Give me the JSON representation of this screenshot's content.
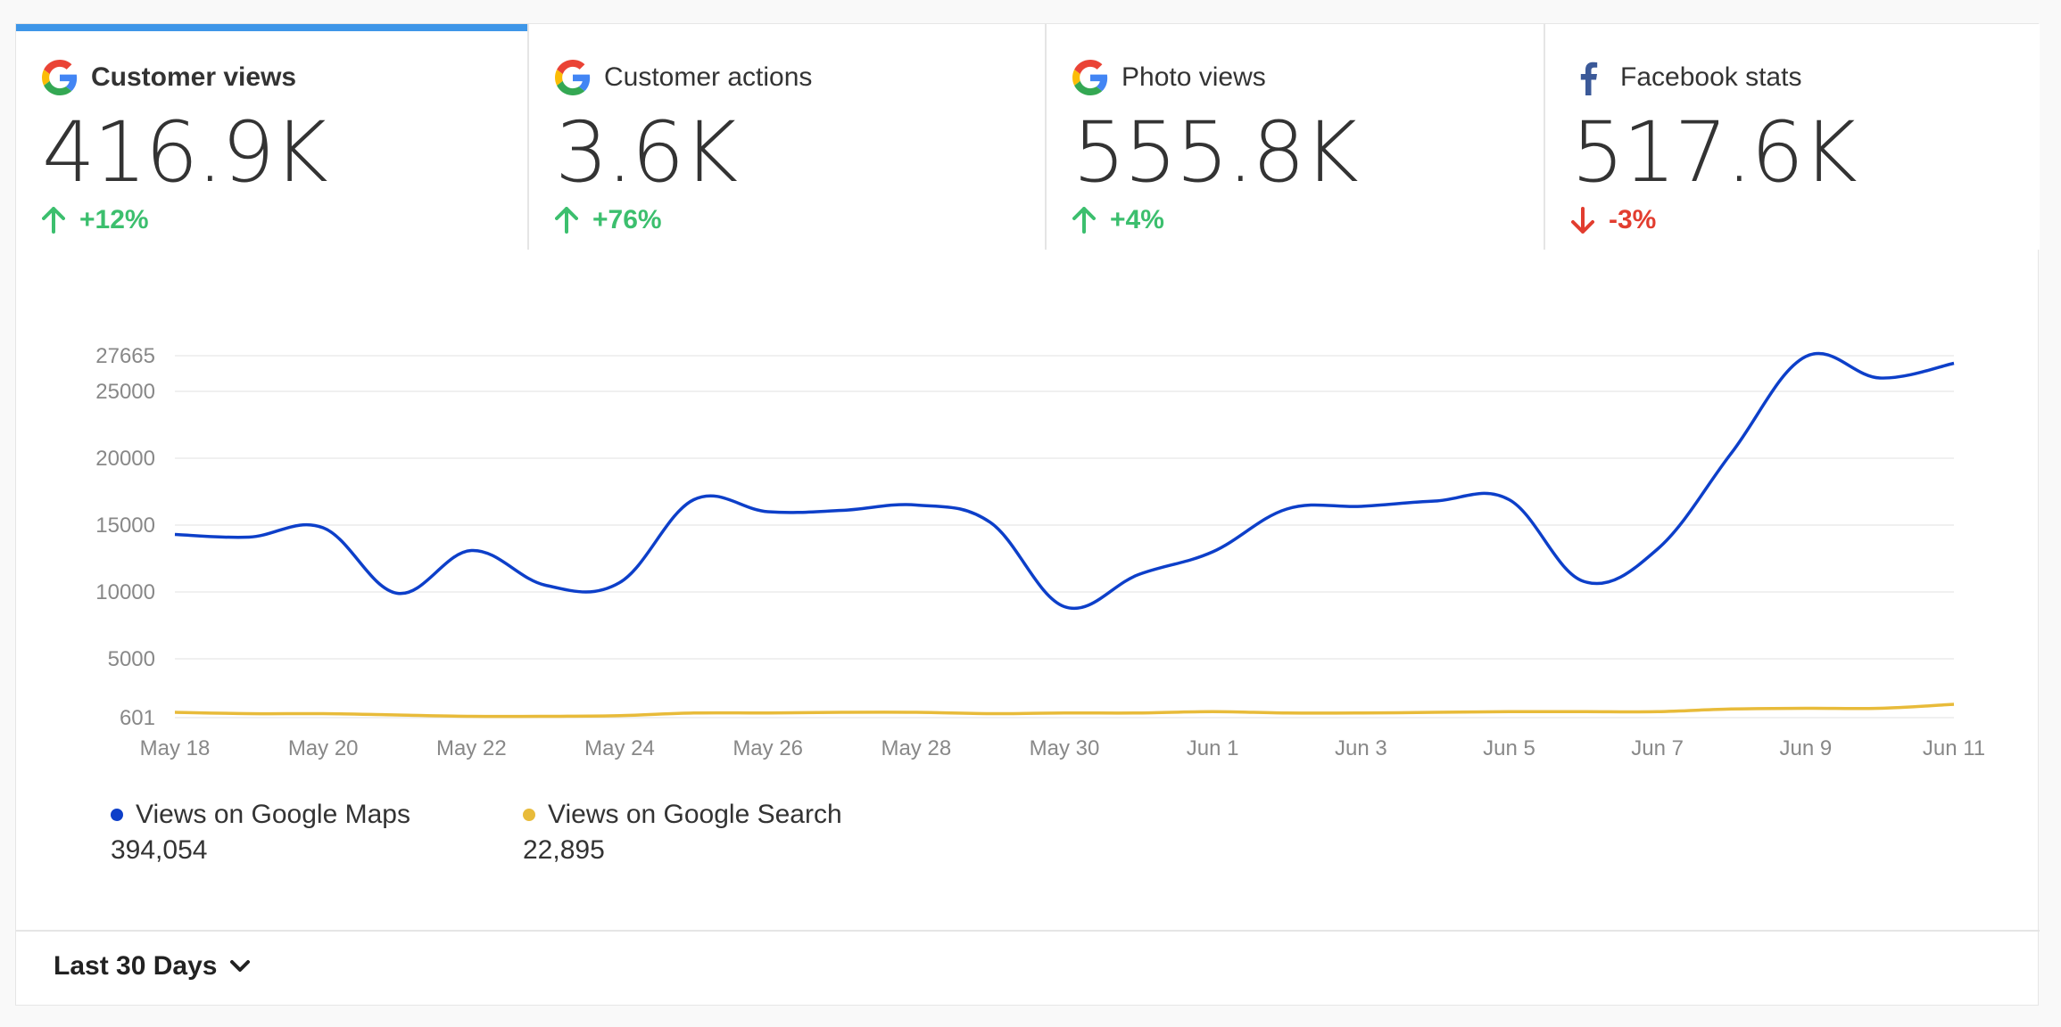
{
  "tabs": [
    {
      "title": "Customer views",
      "value": "416.9K",
      "change": "+12%",
      "direction": "up",
      "icon": "google-icon"
    },
    {
      "title": "Customer actions",
      "value": "3.6K",
      "change": "+76%",
      "direction": "up",
      "icon": "google-icon"
    },
    {
      "title": "Photo views",
      "value": "555.8K",
      "change": "+4%",
      "direction": "up",
      "icon": "google-icon"
    },
    {
      "title": "Facebook stats",
      "value": "517.6K",
      "change": "-3%",
      "direction": "down",
      "icon": "facebook-icon"
    }
  ],
  "chart_data": {
    "type": "line",
    "x": [
      "May 18",
      "May 19",
      "May 20",
      "May 21",
      "May 22",
      "May 23",
      "May 24",
      "May 25",
      "May 26",
      "May 27",
      "May 28",
      "May 29",
      "May 30",
      "May 31",
      "Jun 1",
      "Jun 2",
      "Jun 3",
      "Jun 4",
      "Jun 5",
      "Jun 6",
      "Jun 7",
      "Jun 8",
      "Jun 9",
      "Jun 10",
      "Jun 11"
    ],
    "x_tick_labels": [
      "May 18",
      "May 20",
      "May 22",
      "May 24",
      "May 26",
      "May 28",
      "May 30",
      "Jun 1",
      "Jun 3",
      "Jun 5",
      "Jun 7",
      "Jun 9",
      "Jun 11"
    ],
    "y_tick_labels": [
      "601",
      "5000",
      "10000",
      "15000",
      "20000",
      "25000",
      "27665"
    ],
    "ylim": [
      601,
      27665
    ],
    "grid": true,
    "series": [
      {
        "name": "Views on Google Maps",
        "color": "#0d3fc9",
        "values": [
          14300,
          14100,
          14800,
          9900,
          13100,
          10500,
          10700,
          16900,
          16000,
          16100,
          16500,
          15200,
          8900,
          11300,
          13000,
          16200,
          16400,
          16800,
          16900,
          10800,
          13200,
          20400,
          27600,
          26000,
          27100
        ]
      },
      {
        "name": "Views on Google Search",
        "color": "#e8bb3a",
        "values": [
          1000,
          900,
          900,
          800,
          700,
          700,
          750,
          950,
          950,
          1000,
          1000,
          900,
          950,
          950,
          1050,
          950,
          950,
          1000,
          1050,
          1050,
          1050,
          1250,
          1300,
          1300,
          1600
        ]
      }
    ]
  },
  "legend": [
    {
      "label": "Views on Google Maps",
      "total": "394,054",
      "color": "#0d3fc9"
    },
    {
      "label": "Views on Google Search",
      "total": "22,895",
      "color": "#e8bb3a"
    }
  ],
  "footer": {
    "range_label": "Last 30 Days"
  }
}
